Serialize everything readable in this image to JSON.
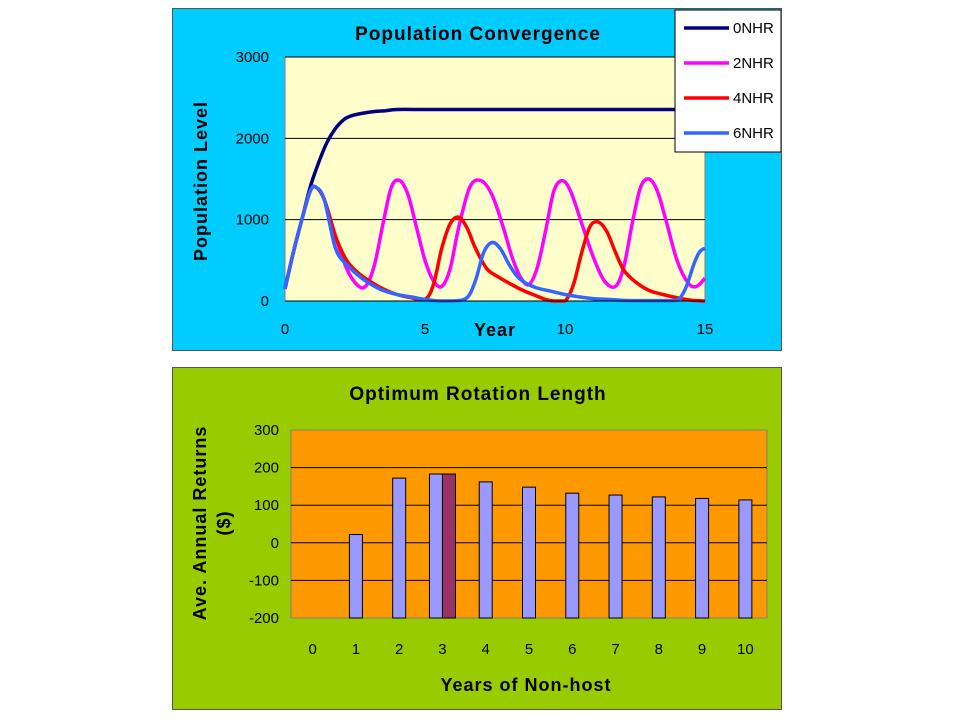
{
  "chart_data": [
    {
      "type": "line",
      "title": "Population Convergence",
      "xlabel": "Year",
      "ylabel": "Population Level",
      "xlim": [
        0,
        15
      ],
      "ylim": [
        0,
        3000
      ],
      "xticks": [
        0,
        5,
        10,
        15
      ],
      "yticks": [
        0,
        1000,
        2000,
        3000
      ],
      "grid": "horizontal",
      "legend": "top-right",
      "colors": {
        "background": "#00ccff",
        "plot_area": "#ffffcc"
      },
      "series": [
        {
          "name": "0NHR",
          "color": "#000080",
          "x": [
            0,
            0.3,
            0.6,
            0.9,
            1.2,
            1.5,
            1.8,
            2.1,
            2.4,
            2.8,
            3.2,
            3.6,
            4,
            5,
            6,
            8,
            10,
            12,
            13,
            14,
            15
          ],
          "y": [
            150,
            600,
            1000,
            1400,
            1700,
            1950,
            2120,
            2230,
            2280,
            2310,
            2330,
            2340,
            2355,
            2355,
            2355,
            2355,
            2355,
            2355,
            2355,
            2355,
            2355
          ]
        },
        {
          "name": "2NHR",
          "color": "#ff00ff",
          "x": [
            0,
            0.3,
            0.6,
            0.9,
            1.1,
            1.4,
            1.8,
            2.2,
            2.6,
            2.9,
            3.2,
            3.5,
            3.8,
            4.1,
            4.4,
            4.7,
            5,
            5.3,
            5.6,
            5.9,
            6.2,
            6.6,
            7,
            7.4,
            7.8,
            8.1,
            8.4,
            8.7,
            9,
            9.3,
            9.6,
            9.9,
            10.2,
            10.6,
            11,
            11.4,
            11.8,
            12.1,
            12.4,
            12.7,
            13,
            13.3,
            13.6,
            14,
            14.4,
            14.7,
            15
          ],
          "y": [
            150,
            600,
            1000,
            1350,
            1400,
            1250,
            800,
            400,
            190,
            190,
            450,
            950,
            1400,
            1480,
            1300,
            900,
            500,
            250,
            180,
            400,
            900,
            1400,
            1480,
            1300,
            900,
            550,
            300,
            200,
            400,
            850,
            1350,
            1480,
            1350,
            950,
            550,
            250,
            180,
            420,
            950,
            1400,
            1500,
            1350,
            1000,
            500,
            220,
            180,
            280
          ]
        },
        {
          "name": "4NHR",
          "color": "#ff0000",
          "x": [
            0,
            0.3,
            0.6,
            0.9,
            1.1,
            1.4,
            1.8,
            2.2,
            2.6,
            3,
            3.5,
            4,
            4.5,
            5,
            5.3,
            5.6,
            5.9,
            6.2,
            6.5,
            6.8,
            7.2,
            7.6,
            8,
            8.5,
            9,
            9.3,
            9.6,
            10,
            10.3,
            10.6,
            10.9,
            11.2,
            11.5,
            11.8,
            12.1,
            12.5,
            13,
            13.5,
            14,
            14.5,
            15
          ],
          "y": [
            150,
            600,
            1000,
            1350,
            1400,
            1250,
            800,
            500,
            350,
            250,
            150,
            80,
            40,
            20,
            200,
            650,
            950,
            1030,
            900,
            650,
            400,
            300,
            220,
            130,
            60,
            20,
            0,
            0,
            200,
            600,
            920,
            970,
            850,
            600,
            380,
            240,
            130,
            80,
            40,
            10,
            0
          ]
        },
        {
          "name": "6NHR",
          "color": "#3366ff",
          "x": [
            0,
            0.3,
            0.6,
            0.9,
            1.1,
            1.4,
            1.8,
            2.2,
            2.6,
            3,
            3.5,
            4,
            4.5,
            5,
            5.5,
            6,
            6.5,
            6.8,
            7.1,
            7.4,
            7.7,
            8,
            8.3,
            8.6,
            9,
            9.5,
            10,
            10.5,
            11,
            11.5,
            12,
            12.5,
            13,
            13.5,
            14,
            14.3,
            14.6,
            14.8,
            15
          ],
          "y": [
            150,
            600,
            1000,
            1350,
            1400,
            1250,
            650,
            450,
            320,
            220,
            130,
            80,
            50,
            20,
            0,
            0,
            40,
            250,
            600,
            720,
            640,
            450,
            300,
            220,
            160,
            120,
            80,
            50,
            30,
            20,
            10,
            5,
            5,
            5,
            10,
            150,
            450,
            600,
            650
          ]
        }
      ]
    },
    {
      "type": "bar",
      "title": "Optimum Rotation Length",
      "xlabel": "Years of Non-host",
      "ylabel": "Ave. Annual Returns ($)",
      "ylim": [
        -200,
        300
      ],
      "yticks": [
        -200,
        -100,
        0,
        100,
        200,
        300
      ],
      "grid": "horizontal",
      "colors": {
        "background": "#99cc00",
        "plot_area": "#ff9900",
        "bar": "#9999ff",
        "highlight_bar": "#993366"
      },
      "categories": [
        "0",
        "1",
        "2",
        "3",
        "4",
        "5",
        "6",
        "7",
        "8",
        "9",
        "10"
      ],
      "series": [
        {
          "values": [
            null,
            22,
            172,
            183,
            162,
            148,
            132,
            127,
            122,
            118,
            114
          ],
          "highlight": [
            null,
            null,
            null,
            183,
            null,
            null,
            null,
            null,
            null,
            null,
            null
          ]
        }
      ]
    }
  ]
}
